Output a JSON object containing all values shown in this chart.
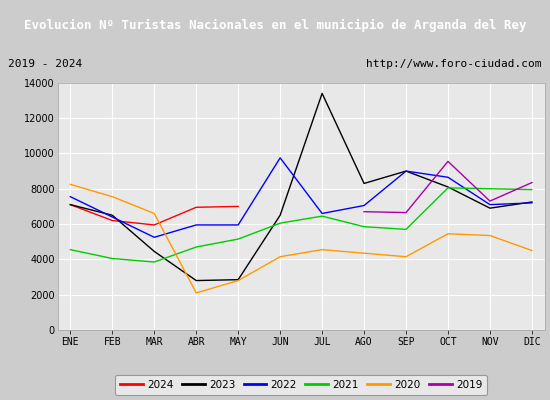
{
  "title": "Evolucion Nº Turistas Nacionales en el municipio de Arganda del Rey",
  "subtitle_left": "2019 - 2024",
  "subtitle_right": "http://www.foro-ciudad.com",
  "months": [
    "ENE",
    "FEB",
    "MAR",
    "ABR",
    "MAY",
    "JUN",
    "JUL",
    "AGO",
    "SEP",
    "OCT",
    "NOV",
    "DIC"
  ],
  "series": {
    "2024": {
      "color": "#ff0000",
      "data": [
        7100,
        6200,
        5950,
        6950,
        7000,
        null,
        null,
        null,
        null,
        null,
        null,
        null
      ]
    },
    "2023": {
      "color": "#000000",
      "data": [
        7100,
        6500,
        4450,
        2800,
        2850,
        6500,
        13400,
        8300,
        9000,
        8100,
        6900,
        7250
      ]
    },
    "2022": {
      "color": "#0000ff",
      "data": [
        7550,
        6400,
        5250,
        5950,
        5950,
        9750,
        6600,
        7050,
        9000,
        8650,
        7100,
        7200
      ]
    },
    "2021": {
      "color": "#00cc00",
      "data": [
        4550,
        4050,
        3850,
        4700,
        5150,
        6050,
        6450,
        5850,
        5700,
        8050,
        8000,
        7950
      ]
    },
    "2020": {
      "color": "#ff9900",
      "data": [
        8250,
        7550,
        6600,
        2100,
        2800,
        4150,
        4550,
        4350,
        4150,
        5450,
        5350,
        4500
      ]
    },
    "2019": {
      "color": "#aa00aa",
      "data": [
        null,
        null,
        null,
        null,
        null,
        null,
        null,
        6700,
        6650,
        9550,
        7300,
        8350
      ]
    }
  },
  "ylim": [
    0,
    14000
  ],
  "yticks": [
    0,
    2000,
    4000,
    6000,
    8000,
    10000,
    12000,
    14000
  ],
  "title_bg": "#4477cc",
  "title_color": "#ffffff",
  "subtitle_bg": "#e8e8e8",
  "subtitle_border": "#aaaaaa",
  "plot_bg": "#e8e8e8",
  "outer_bg": "#cccccc",
  "grid_color": "#ffffff",
  "legend_order": [
    "2024",
    "2023",
    "2022",
    "2021",
    "2020",
    "2019"
  ]
}
